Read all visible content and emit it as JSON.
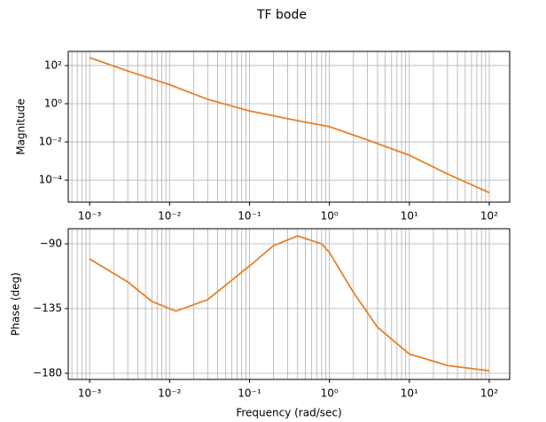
{
  "title": "TF bode",
  "chart_data": [
    {
      "type": "line",
      "ylabel": "Magnitude",
      "xscale": "log",
      "yscale": "log",
      "grid": true,
      "xminor_grid": true,
      "color": "#e8802a",
      "x": [
        0.001,
        0.003,
        0.01,
        0.03,
        0.1,
        0.4,
        1,
        3,
        10,
        30,
        100
      ],
      "values": [
        260,
        52,
        10,
        1.7,
        0.42,
        0.13,
        0.063,
        0.0126,
        0.002,
        0.00021,
        2.2e-05
      ],
      "xlim": [
        0.00054,
        180
      ],
      "ylim": [
        7e-06,
        550
      ],
      "xticks": [
        {
          "value": 0.001,
          "label": "10⁻³"
        },
        {
          "value": 0.01,
          "label": "10⁻²"
        },
        {
          "value": 0.1,
          "label": "10⁻¹"
        },
        {
          "value": 1,
          "label": "10⁰"
        },
        {
          "value": 10,
          "label": "10¹"
        },
        {
          "value": 100,
          "label": "10²"
        }
      ],
      "yticks": [
        {
          "value": 0.0001,
          "label": "10⁻⁴"
        },
        {
          "value": 0.01,
          "label": "10⁻²"
        },
        {
          "value": 1,
          "label": "10⁰"
        },
        {
          "value": 100,
          "label": "10²"
        }
      ]
    },
    {
      "type": "line",
      "ylabel": "Phase (deg)",
      "xlabel": "Frequency (rad/sec)",
      "xscale": "log",
      "grid": true,
      "xminor_grid": true,
      "color": "#e8802a",
      "x": [
        0.001,
        0.003,
        0.006,
        0.012,
        0.03,
        0.1,
        0.2,
        0.4,
        0.8,
        1,
        2,
        4,
        10,
        30,
        100
      ],
      "values": [
        -100.5,
        -116.5,
        -130,
        -136.8,
        -128.8,
        -105.4,
        -91.2,
        -84.5,
        -90,
        -96,
        -123.8,
        -148,
        -166.6,
        -174.6,
        -178.3
      ],
      "xlim": [
        0.00054,
        180
      ],
      "ylim": [
        -184.3,
        -79.5
      ],
      "xticks": [
        {
          "value": 0.001,
          "label": "10⁻³"
        },
        {
          "value": 0.01,
          "label": "10⁻²"
        },
        {
          "value": 0.1,
          "label": "10⁻¹"
        },
        {
          "value": 1,
          "label": "10⁰"
        },
        {
          "value": 10,
          "label": "10¹"
        },
        {
          "value": 100,
          "label": "10²"
        }
      ],
      "yticks": [
        {
          "value": -180,
          "label": "−180"
        },
        {
          "value": -135,
          "label": "−135"
        },
        {
          "value": -90,
          "label": "−90"
        }
      ]
    }
  ]
}
